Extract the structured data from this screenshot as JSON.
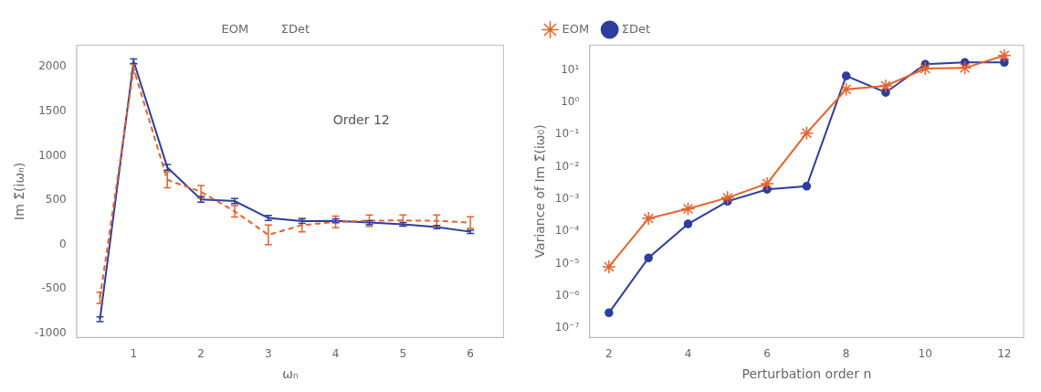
{
  "chart_data": [
    {
      "type": "line",
      "x_label": "ωₙ",
      "y_label": "Im Σ̃(iωₙ)",
      "annotation": "Order 12",
      "x": [
        0.5,
        1.0,
        1.5,
        2.0,
        2.5,
        3.0,
        3.5,
        4.0,
        4.5,
        5.0,
        5.5,
        6.0
      ],
      "series": [
        {
          "name": "EOM",
          "color": "#e8622a",
          "line_style": "dashed",
          "values": [
            -600,
            1980,
            730,
            595,
            375,
            110,
            220,
            255,
            270,
            272,
            268,
            248
          ],
          "errors": [
            65,
            55,
            90,
            70,
            65,
            110,
            75,
            65,
            65,
            62,
            65,
            65
          ]
        },
        {
          "name": "ΣDet",
          "color": "#2c3e9e",
          "line_style": "solid",
          "values": [
            -840,
            2065,
            870,
            510,
            490,
            300,
            265,
            268,
            248,
            228,
            198,
            145
          ],
          "errors": [
            28,
            25,
            32,
            32,
            28,
            28,
            25,
            22,
            22,
            20,
            18,
            18
          ]
        }
      ],
      "xlim": [
        0.15,
        6.5
      ],
      "ylim": [
        -1050,
        2250
      ],
      "xticks": [
        1,
        2,
        3,
        4,
        5,
        6
      ],
      "yticks": [
        -1000,
        -500,
        0,
        500,
        1000,
        1500,
        2000
      ],
      "grid": false,
      "legend": "top"
    },
    {
      "type": "line",
      "x_label": "Perturbation order n",
      "y_label": "Variance of Im Σ̃(iω₀)",
      "log": "y",
      "x": [
        2,
        3,
        4,
        5,
        6,
        7,
        8,
        9,
        10,
        11,
        12
      ],
      "series": [
        {
          "name": "EOM",
          "color": "#e8622a",
          "marker": "star",
          "line_style": "solid",
          "values": [
            8e-06,
            0.00025,
            0.0005,
            0.0011,
            0.003,
            0.11,
            2.5,
            3.2,
            11.0,
            11.5,
            28.0
          ]
        },
        {
          "name": "ΣDet",
          "color": "#2c3e9e",
          "marker": "circle",
          "line_style": "solid",
          "values": [
            3e-07,
            1.5e-05,
            0.00017,
            0.00085,
            0.002,
            0.0025,
            6.5,
            2.0,
            15.0,
            17.0,
            17.0
          ]
        }
      ],
      "xlim": [
        1.5,
        12.5
      ],
      "ylim": [
        5e-08,
        60.0
      ],
      "xticks": [
        2,
        4,
        6,
        8,
        10,
        12
      ],
      "yticks": [
        {
          "value": 1e-07,
          "label": "10⁻⁷"
        },
        {
          "value": 1e-06,
          "label": "10⁻⁶"
        },
        {
          "value": 1e-05,
          "label": "10⁻⁵"
        },
        {
          "value": 0.0001,
          "label": "10⁻⁴"
        },
        {
          "value": 0.001,
          "label": "10⁻³"
        },
        {
          "value": 0.01,
          "label": "10⁻²"
        },
        {
          "value": 0.1,
          "label": "10⁻¹"
        },
        {
          "value": 1,
          "label": "10⁰"
        },
        {
          "value": 10,
          "label": "10¹"
        }
      ],
      "grid": false,
      "legend": "upper left"
    }
  ]
}
